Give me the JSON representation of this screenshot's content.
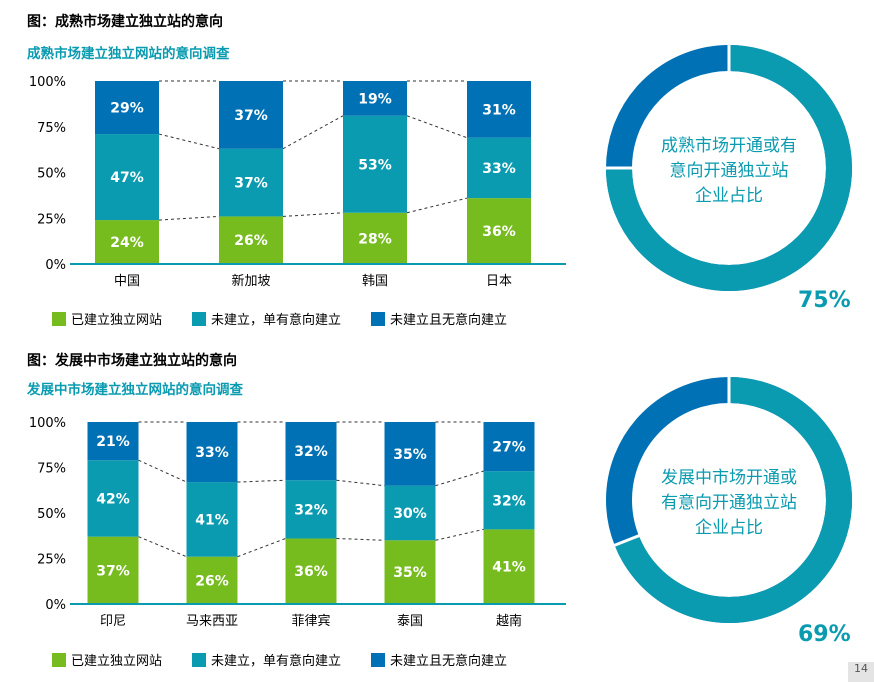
{
  "section1": {
    "fig_title": "图：成熟市场建立独立站的意向",
    "subtitle": "成熟市场建立独立网站的意向调查",
    "donut": {
      "text_lines": [
        "成熟市场开通或有",
        "意向开通独立站",
        "企业占比"
      ],
      "percent": "75%",
      "value": 0.75
    }
  },
  "section2": {
    "fig_title": "图：发展中市场建立独立站的意向",
    "subtitle": "发展中市场建立独立网站的意向调查",
    "donut": {
      "text_lines": [
        "发展中市场开通或",
        "有意向开通独立站",
        "企业占比"
      ],
      "percent": "69%",
      "value": 0.69
    }
  },
  "legend": [
    "已建立独立网站",
    "未建立，单有意向建立",
    "未建立且无意向建立"
  ],
  "colors": {
    "green": "#77bc1f",
    "teal": "#0a9bb0",
    "blue": "#0071b4",
    "axis": "#0a9bb0",
    "donut_main": "#0a9bb0",
    "donut_rest": "#0071b4"
  },
  "page_number": "14",
  "chart_data": [
    {
      "type": "bar",
      "stacked": true,
      "categories": [
        "中国",
        "新加坡",
        "韩国",
        "日本"
      ],
      "yticks": [
        "0%",
        "25%",
        "50%",
        "75%",
        "100%"
      ],
      "ylim": [
        0,
        100
      ],
      "series": [
        {
          "name": "已建立独立网站",
          "values": [
            24,
            26,
            28,
            36
          ],
          "labels": [
            "24%",
            "26%",
            "28%",
            "36%"
          ]
        },
        {
          "name": "未建立，单有意向建立",
          "values": [
            47,
            37,
            53,
            33
          ],
          "labels": [
            "47%",
            "37%",
            "53%",
            "33%"
          ]
        },
        {
          "name": "未建立且无意向建立",
          "values": [
            29,
            37,
            19,
            31
          ],
          "labels": [
            "29%",
            "37%",
            "19%",
            "31%"
          ]
        }
      ]
    },
    {
      "type": "bar",
      "stacked": true,
      "categories": [
        "印尼",
        "马来西亚",
        "菲律宾",
        "泰国",
        "越南"
      ],
      "yticks": [
        "0%",
        "25%",
        "50%",
        "75%",
        "100%"
      ],
      "ylim": [
        0,
        100
      ],
      "series": [
        {
          "name": "已建立独立网站",
          "values": [
            37,
            26,
            36,
            35,
            41
          ],
          "labels": [
            "37%",
            "26%",
            "36%",
            "35%",
            "41%"
          ]
        },
        {
          "name": "未建立，单有意向建立",
          "values": [
            42,
            41,
            32,
            30,
            32
          ],
          "labels": [
            "42%",
            "41%",
            "32%",
            "30%",
            "32%"
          ]
        },
        {
          "name": "未建立且无意向建立",
          "values": [
            21,
            33,
            32,
            35,
            27
          ],
          "labels": [
            "21%",
            "33%",
            "32%",
            "35%",
            "27%"
          ]
        }
      ]
    }
  ]
}
